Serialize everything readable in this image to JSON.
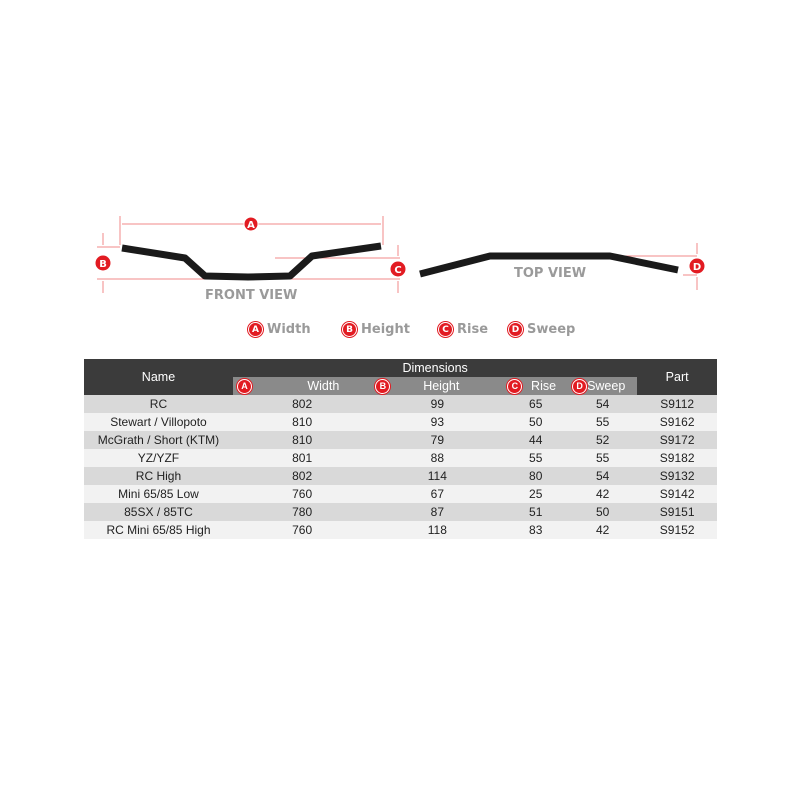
{
  "diagram": {
    "front_view_label": "FRONT VIEW",
    "top_view_label": "TOP VIEW",
    "markers": {
      "a": "A",
      "b": "B",
      "c": "C",
      "d": "D"
    },
    "accent_color": "#e21b22"
  },
  "legend": [
    {
      "letter": "A",
      "label": "Width"
    },
    {
      "letter": "B",
      "label": "Height"
    },
    {
      "letter": "C",
      "label": "Rise"
    },
    {
      "letter": "D",
      "label": "Sweep"
    }
  ],
  "table": {
    "headers": {
      "name": "Name",
      "dimensions": "Dimensions",
      "part": "Part"
    },
    "sub_headers": [
      {
        "letter": "A",
        "label": "Width"
      },
      {
        "letter": "B",
        "label": "Height"
      },
      {
        "letter": "C",
        "label": "Rise"
      },
      {
        "letter": "D",
        "label": "Sweep"
      }
    ],
    "rows": [
      {
        "name": "RC",
        "width": "802",
        "height": "99",
        "rise": "65",
        "sweep": "54",
        "part": "S9112"
      },
      {
        "name": "Stewart / Villopoto",
        "width": "810",
        "height": "93",
        "rise": "50",
        "sweep": "55",
        "part": "S9162"
      },
      {
        "name": "McGrath / Short (KTM)",
        "width": "810",
        "height": "79",
        "rise": "44",
        "sweep": "52",
        "part": "S9172"
      },
      {
        "name": "YZ/YZF",
        "width": "801",
        "height": "88",
        "rise": "55",
        "sweep": "55",
        "part": "S9182"
      },
      {
        "name": "RC High",
        "width": "802",
        "height": "114",
        "rise": "80",
        "sweep": "54",
        "part": "S9132"
      },
      {
        "name": "Mini 65/85 Low",
        "width": "760",
        "height": "67",
        "rise": "25",
        "sweep": "42",
        "part": "S9142"
      },
      {
        "name": "85SX / 85TC",
        "width": "780",
        "height": "87",
        "rise": "51",
        "sweep": "50",
        "part": "S9151"
      },
      {
        "name": "RC Mini 65/85 High",
        "width": "760",
        "height": "118",
        "rise": "83",
        "sweep": "42",
        "part": "S9152"
      }
    ]
  }
}
